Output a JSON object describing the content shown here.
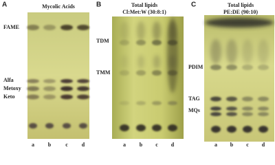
{
  "panels": [
    {
      "letter": "A",
      "title": [
        "Mycolic Acids"
      ],
      "labels": [
        "FAME",
        "Alfa",
        "Metoxy",
        "Keto"
      ],
      "lanes": [
        "a",
        "b",
        "c",
        "d"
      ]
    },
    {
      "letter": "B",
      "title": [
        "Total lipids",
        "Cl:Met:W (30:8:1)"
      ],
      "labels": [
        "TDM",
        "TMM"
      ],
      "lanes": [
        "a",
        "b",
        "c",
        "d"
      ]
    },
    {
      "letter": "C",
      "title": [
        "Total lipids",
        "PE:DE (90:10)"
      ],
      "labels": [
        "PDIM",
        "TAG",
        "MQs"
      ],
      "lanes": [
        "a",
        "b",
        "c",
        "d"
      ]
    }
  ]
}
